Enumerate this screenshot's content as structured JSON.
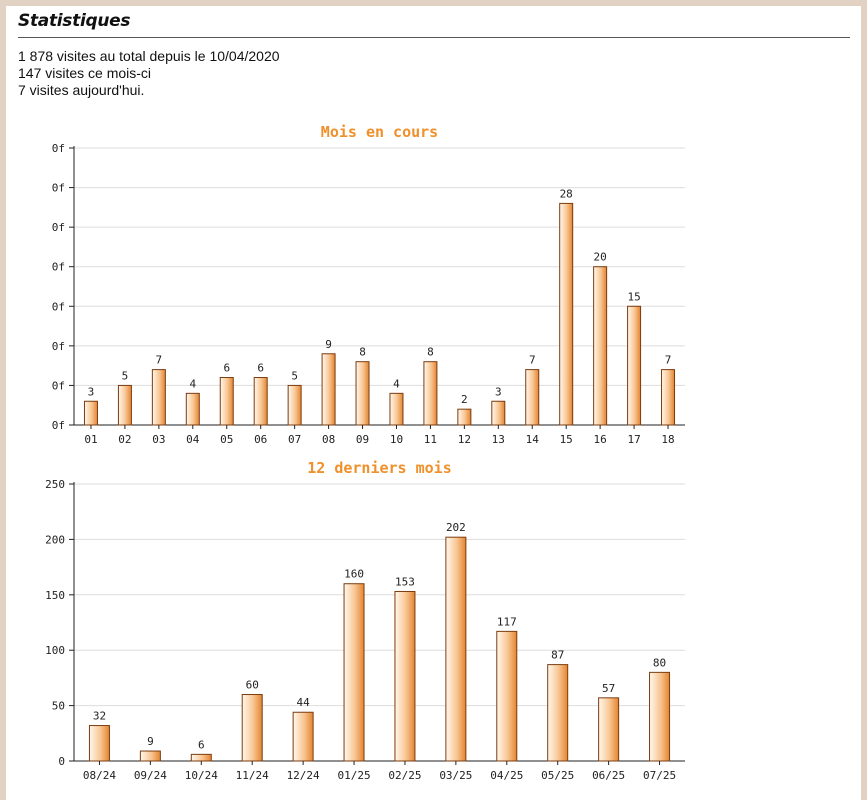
{
  "page": {
    "title": "Statistiques",
    "stats": [
      "1 878 visites au total depuis le 10/04/2020",
      "147 visites ce mois-ci",
      "7 visites aujourd'hui."
    ]
  },
  "colors": {
    "bar_light": "#fff7ec",
    "bar_dark": "#e88a3a",
    "bar_stroke": "#7a3c10",
    "title": "#f0902a",
    "grid": "#dddddd",
    "axis": "#222222"
  },
  "chart_data": [
    {
      "type": "bar",
      "title": "Mois en cours",
      "categories": [
        "01",
        "02",
        "03",
        "04",
        "05",
        "06",
        "07",
        "08",
        "09",
        "10",
        "11",
        "12",
        "13",
        "14",
        "15",
        "16",
        "17",
        "18"
      ],
      "values": [
        3,
        5,
        7,
        4,
        6,
        6,
        5,
        9,
        8,
        4,
        8,
        2,
        3,
        7,
        28,
        20,
        15,
        7
      ],
      "y_tick_labels": [
        "0f",
        "0f",
        "0f",
        "0f",
        "0f",
        "0f",
        "0f",
        "0f"
      ],
      "ylim": [
        0,
        35
      ],
      "grid": true,
      "xlabel": "",
      "ylabel": ""
    },
    {
      "type": "bar",
      "title": "12 derniers mois",
      "categories": [
        "08/24",
        "09/24",
        "10/24",
        "11/24",
        "12/24",
        "01/25",
        "02/25",
        "03/25",
        "04/25",
        "05/25",
        "06/25",
        "07/25"
      ],
      "values": [
        32,
        9,
        6,
        60,
        44,
        160,
        153,
        202,
        117,
        87,
        57,
        80
      ],
      "y_tick_labels": [
        "0",
        "50",
        "100",
        "150",
        "200",
        "250"
      ],
      "ylim": [
        0,
        250
      ],
      "grid": true,
      "xlabel": "",
      "ylabel": ""
    }
  ]
}
